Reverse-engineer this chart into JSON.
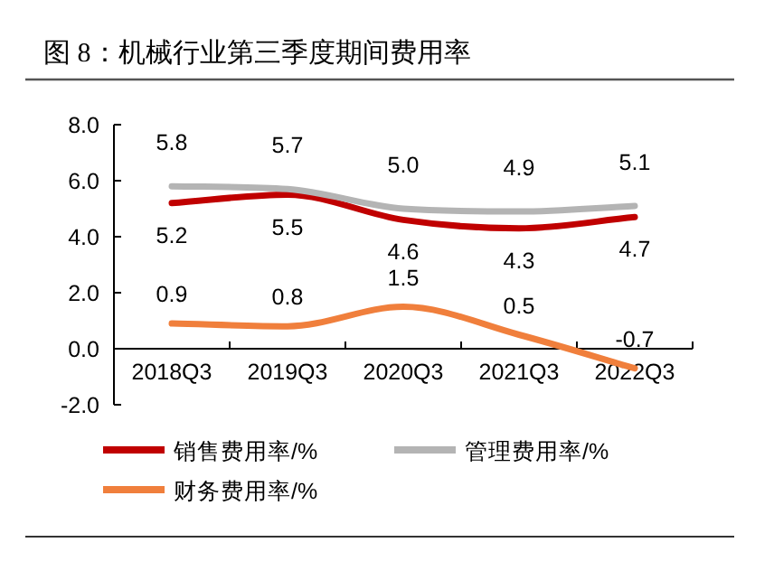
{
  "chart_data": {
    "type": "line",
    "title": "图 8：机械行业第三季度期间费用率",
    "categories": [
      "2018Q3",
      "2019Q3",
      "2020Q3",
      "2021Q3",
      "2022Q3"
    ],
    "series": [
      {
        "name": "销售费用率/%",
        "color": "#c00000",
        "values": [
          5.2,
          5.5,
          4.6,
          4.3,
          4.7
        ]
      },
      {
        "name": "管理费用率/%",
        "color": "#b4b4b4",
        "values": [
          5.8,
          5.7,
          5.0,
          4.9,
          5.1
        ],
        "value_labels": [
          "5.8",
          "5.7",
          "5.0",
          "4.9",
          "5.1"
        ]
      },
      {
        "name": "财务费用率/%",
        "color": "#f07f3c",
        "values": [
          0.9,
          0.8,
          1.5,
          0.5,
          -0.7
        ]
      }
    ],
    "ylim": [
      -2,
      8
    ],
    "yticks": [
      {
        "value": -2,
        "label": "-2.0"
      },
      {
        "value": 0,
        "label": "0.0"
      },
      {
        "value": 2,
        "label": "2.0"
      },
      {
        "value": 4,
        "label": "4.0"
      },
      {
        "value": 6,
        "label": "6.0"
      },
      {
        "value": 8,
        "label": "8.0"
      }
    ],
    "data_labels": true,
    "legend": "bottom",
    "grid": false,
    "marker": "none",
    "line_style": "solid"
  }
}
